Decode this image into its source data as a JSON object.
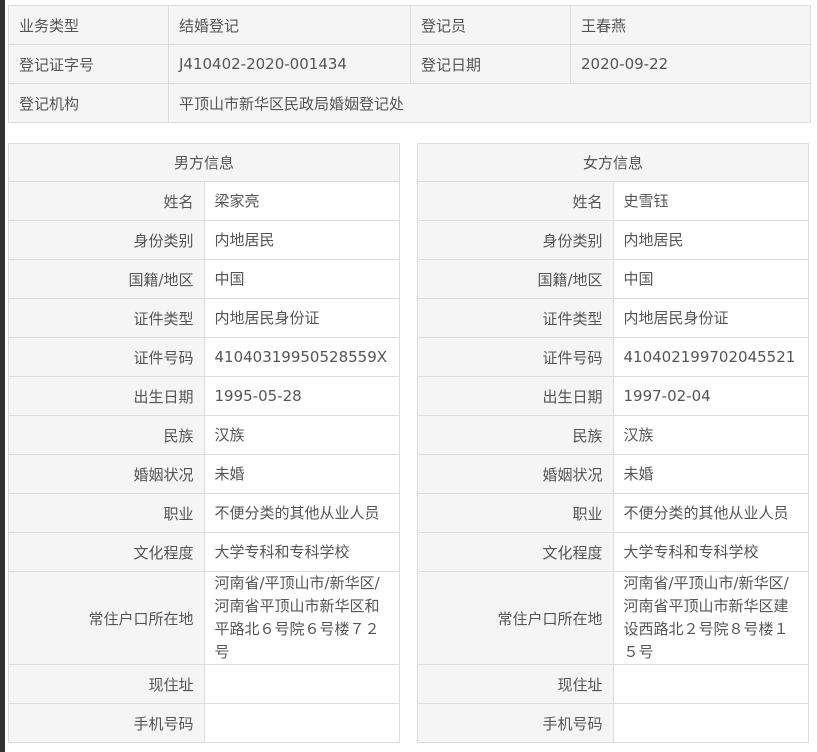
{
  "top": {
    "business_type_label": "业务类型",
    "business_type": "结婚登记",
    "registrar_label": "登记员",
    "registrar": "王春燕",
    "cert_no_label": "登记证字号",
    "cert_no": "J410402-2020-001434",
    "reg_date_label": "登记日期",
    "reg_date": "2020-09-22",
    "agency_label": "登记机构",
    "agency": "平顶山市新华区民政局婚姻登记处"
  },
  "male": {
    "title": "男方信息",
    "rows": [
      {
        "label": "姓名",
        "value": "梁家亮"
      },
      {
        "label": "身份类别",
        "value": "内地居民"
      },
      {
        "label": "国籍/地区",
        "value": "中国"
      },
      {
        "label": "证件类型",
        "value": "内地居民身份证"
      },
      {
        "label": "证件号码",
        "value": "41040319950528559X"
      },
      {
        "label": "出生日期",
        "value": "1995-05-28"
      },
      {
        "label": "民族",
        "value": "汉族"
      },
      {
        "label": "婚姻状况",
        "value": "未婚"
      },
      {
        "label": "职业",
        "value": "不便分类的其他从业人员"
      },
      {
        "label": "文化程度",
        "value": "大学专科和专科学校"
      },
      {
        "label": "常住户口所在地",
        "value": "河南省/平顶山市/新华区/河南省平顶山市新华区和平路北６号院６号楼７２号"
      },
      {
        "label": "现住址",
        "value": ""
      },
      {
        "label": "手机号码",
        "value": ""
      }
    ]
  },
  "female": {
    "title": "女方信息",
    "rows": [
      {
        "label": "姓名",
        "value": "史雪钰"
      },
      {
        "label": "身份类别",
        "value": "内地居民"
      },
      {
        "label": "国籍/地区",
        "value": "中国"
      },
      {
        "label": "证件类型",
        "value": "内地居民身份证"
      },
      {
        "label": "证件号码",
        "value": "410402199702045521"
      },
      {
        "label": "出生日期",
        "value": "1997-02-04"
      },
      {
        "label": "民族",
        "value": "汉族"
      },
      {
        "label": "婚姻状况",
        "value": "未婚"
      },
      {
        "label": "职业",
        "value": "不便分类的其他从业人员"
      },
      {
        "label": "文化程度",
        "value": "大学专科和专科学校"
      },
      {
        "label": "常住户口所在地",
        "value": "河南省/平顶山市/新华区/河南省平顶山市新华区建设西路北２号院８号楼１５号"
      },
      {
        "label": "现住址",
        "value": ""
      },
      {
        "label": "手机号码",
        "value": ""
      }
    ]
  }
}
